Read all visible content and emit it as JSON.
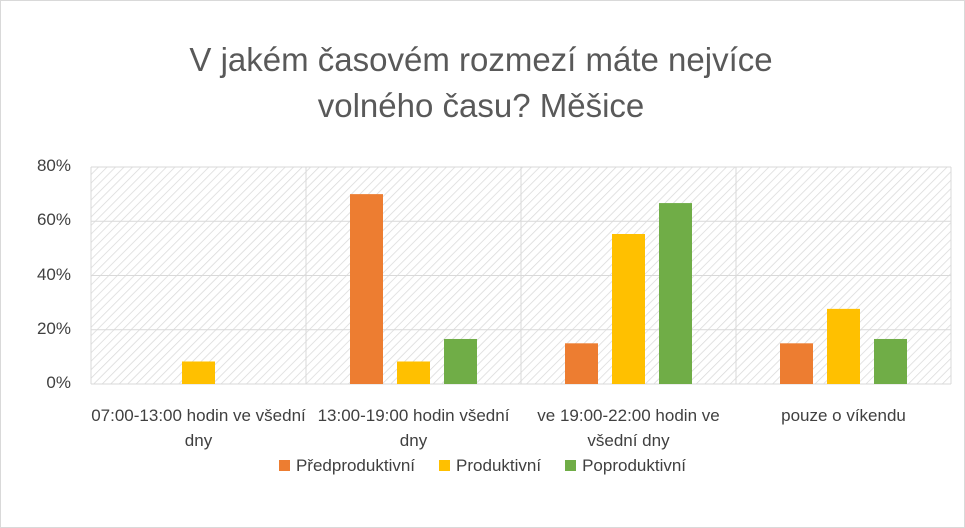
{
  "chart_data": {
    "type": "bar",
    "title": "V jakém časovém rozmezí máte nejvíce volného času? Měšice",
    "categories": [
      "07:00-13:00 hodin ve všední dny",
      "13:00-19:00 hodin všední dny",
      "ve 19:00-22:00 hodin ve všední dny",
      "pouze o víkendu"
    ],
    "series": [
      {
        "name": "Předproduktivní",
        "color": "#ed7d31",
        "values": [
          0,
          70,
          15,
          15
        ]
      },
      {
        "name": "Produktivní",
        "color": "#ffc000",
        "values": [
          8.3,
          8.3,
          55.3,
          27.7
        ]
      },
      {
        "name": "Poproduktivní",
        "color": "#70ad47",
        "values": [
          0,
          16.6,
          66.7,
          16.6
        ]
      }
    ],
    "ylim": [
      0,
      80
    ],
    "yticks": [
      {
        "value": 0,
        "label": "0%"
      },
      {
        "value": 20,
        "label": "20%"
      },
      {
        "value": 40,
        "label": "40%"
      },
      {
        "value": 60,
        "label": "60%"
      },
      {
        "value": 80,
        "label": "80%"
      }
    ],
    "grid": true,
    "legend": "bottom"
  }
}
